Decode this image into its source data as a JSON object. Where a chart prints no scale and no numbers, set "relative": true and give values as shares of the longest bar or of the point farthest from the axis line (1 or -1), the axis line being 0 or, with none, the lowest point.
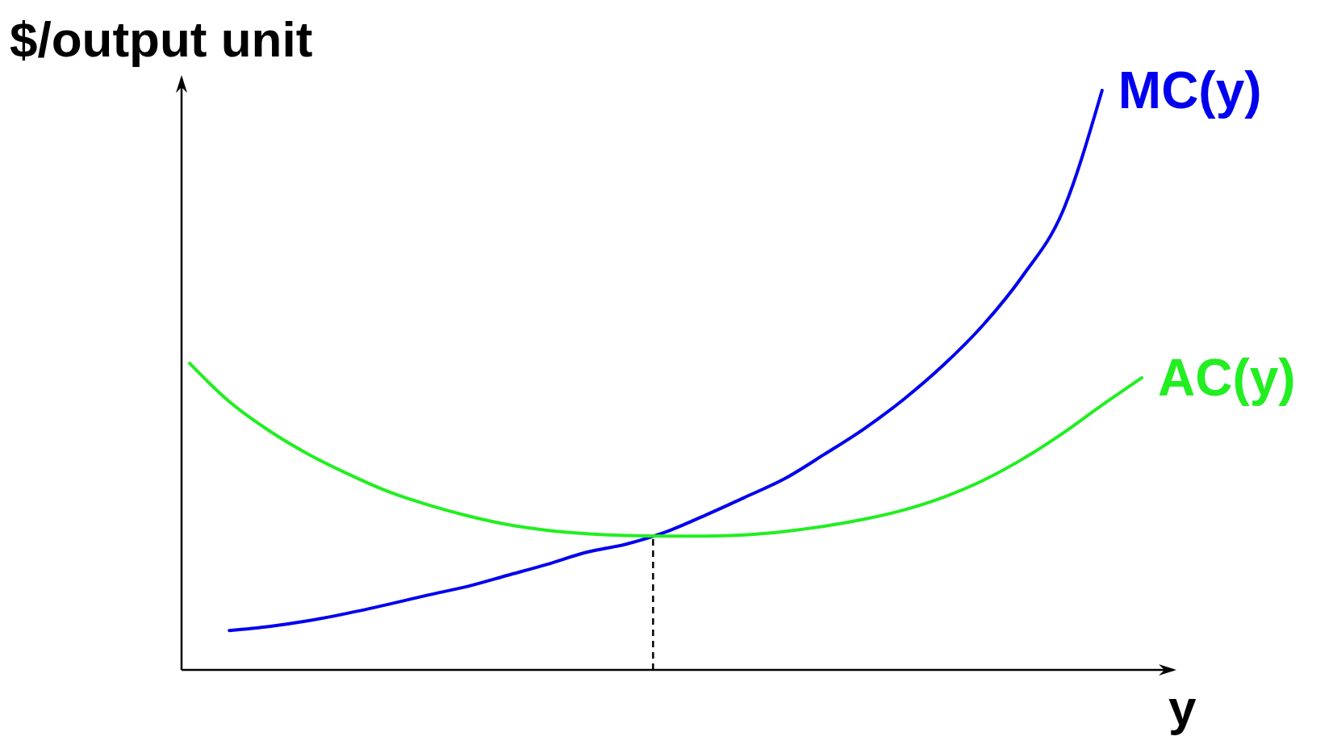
{
  "chart_data": {
    "type": "line",
    "relative": true,
    "xlabel": "y",
    "ylabel": "$/output unit",
    "categories": [
      null,
      null,
      null,
      null,
      null,
      null,
      null,
      null,
      null,
      null,
      null,
      null,
      null,
      null,
      null,
      null,
      null,
      null,
      null,
      null,
      null,
      null,
      null,
      null,
      null
    ],
    "series": [
      {
        "name": "MC(y)",
        "color": "#0000ee",
        "values": [
          null,
          0.068,
          0.075,
          0.085,
          0.098,
          0.113,
          0.129,
          0.144,
          0.163,
          0.182,
          0.203,
          0.217,
          0.238,
          0.267,
          0.298,
          0.33,
          0.372,
          0.416,
          0.467,
          0.526,
          0.595,
          0.68,
          0.79,
          1.0,
          null
        ]
      },
      {
        "name": "AC(y)",
        "color": "#22ee22",
        "values": [
          0.529,
          0.463,
          0.413,
          0.372,
          0.338,
          0.308,
          0.285,
          0.266,
          0.251,
          0.241,
          0.235,
          0.232,
          0.231,
          0.231,
          0.233,
          0.239,
          0.248,
          0.26,
          0.276,
          0.298,
          0.327,
          0.364,
          0.408,
          0.457,
          0.504
        ]
      }
    ]
  }
}
